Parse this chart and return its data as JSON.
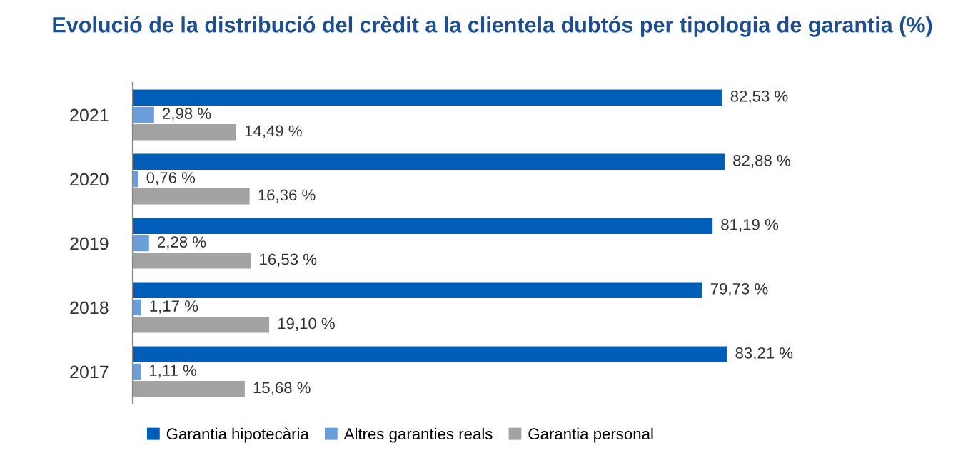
{
  "chart_data": {
    "type": "bar",
    "orientation": "horizontal",
    "title": "Evolució de la distribució del crèdit a la clientela dubtós per tipologia de garantia (%)",
    "categories": [
      "2021",
      "2020",
      "2019",
      "2018",
      "2017"
    ],
    "series": [
      {
        "name": "Garantia hipotecària",
        "color": "#005eb8",
        "values": [
          82.53,
          82.88,
          81.19,
          79.73,
          83.21
        ],
        "value_labels": [
          "82,53 %",
          "82,88 %",
          "81,19 %",
          "79,73 %",
          "83,21 %"
        ]
      },
      {
        "name": "Altres garanties reals",
        "color": "#6a9fdc",
        "values": [
          2.98,
          0.76,
          2.28,
          1.17,
          1.11
        ],
        "value_labels": [
          "2,98 %",
          "0,76 %",
          "2,28 %",
          "1,17 %",
          "1,11 %"
        ]
      },
      {
        "name": "Garantia personal",
        "color": "#a3a3a3",
        "values": [
          14.49,
          16.36,
          16.53,
          19.1,
          15.68
        ],
        "value_labels": [
          "14,49 %",
          "16,36 %",
          "16,53 %",
          "19,10 %",
          "15,68 %"
        ]
      }
    ],
    "tick_labels": "y",
    "grid": false,
    "legend": "bottom left"
  }
}
